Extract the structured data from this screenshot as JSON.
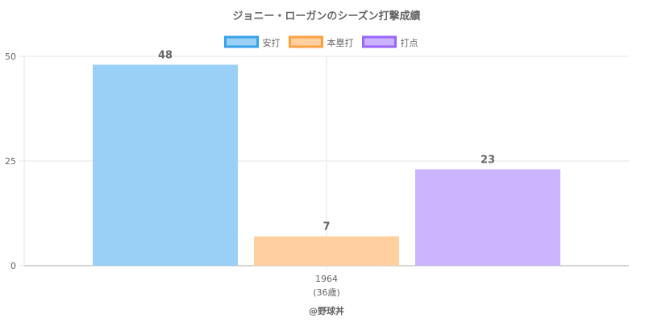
{
  "chart_data": {
    "type": "bar",
    "title": "ジョニー・ローガンのシーズン打撃成績",
    "categories": [
      "1964"
    ],
    "category_sublabels": [
      "(36歳)"
    ],
    "series": [
      {
        "name": "安打",
        "values": [
          48
        ],
        "fill": "#9ad0f5",
        "stroke": "#36a2eb"
      },
      {
        "name": "本塁打",
        "values": [
          7
        ],
        "fill": "#ffcf9f",
        "stroke": "#ff9f40"
      },
      {
        "name": "打点",
        "values": [
          23
        ],
        "fill": "#ccb3ff",
        "stroke": "#9966ff"
      }
    ],
    "y_ticks": [
      0,
      25,
      50
    ],
    "ylim": [
      0,
      50
    ],
    "grid": true,
    "legend_position": "top"
  },
  "credit": "@野球丼"
}
